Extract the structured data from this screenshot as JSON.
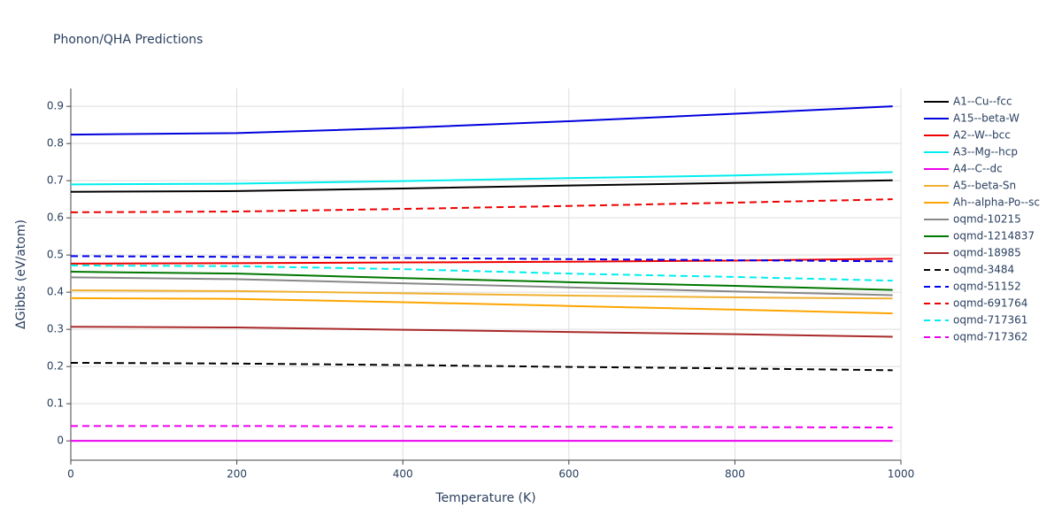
{
  "chart_data": {
    "type": "line",
    "title": "Phonon/QHA Predictions",
    "x_label": "Temperature (K)",
    "y_label": "ΔGibbs (eV/atom)",
    "x": [
      0,
      200,
      400,
      600,
      800,
      990
    ],
    "xlim": [
      0,
      1000
    ],
    "xticks": [
      0,
      200,
      400,
      600,
      800,
      1000
    ],
    "ylim": [
      -0.052,
      0.948
    ],
    "yticks": [
      0,
      0.1,
      0.2,
      0.3,
      0.4,
      0.5,
      0.6,
      0.7,
      0.8,
      0.9
    ],
    "grid": true,
    "legend": "right",
    "series": [
      {
        "name": "A1--Cu--fcc",
        "color": "#000000",
        "dash": "solid",
        "values": [
          0.67,
          0.672,
          0.679,
          0.687,
          0.694,
          0.701
        ]
      },
      {
        "name": "A15--beta-W",
        "color": "#0000dd",
        "dash": "solid",
        "values": [
          0.824,
          0.828,
          0.842,
          0.86,
          0.88,
          0.9
        ]
      },
      {
        "name": "A2--W--bcc",
        "color": "#ee0000",
        "dash": "solid",
        "values": [
          0.477,
          0.478,
          0.48,
          0.482,
          0.485,
          0.49
        ]
      },
      {
        "name": "A3--Mg--hcp",
        "color": "#00eeee",
        "dash": "solid",
        "values": [
          0.69,
          0.692,
          0.699,
          0.707,
          0.714,
          0.723
        ]
      },
      {
        "name": "A4--C--dc",
        "color": "#ee00ee",
        "dash": "solid",
        "values": [
          0,
          0,
          0,
          0,
          0,
          0
        ]
      },
      {
        "name": "A5--beta-Sn",
        "color": "#f0b030",
        "dash": "solid",
        "values": [
          0.405,
          0.403,
          0.397,
          0.391,
          0.386,
          0.383
        ]
      },
      {
        "name": "Ah--alpha-Po--sc",
        "color": "#ffa500",
        "dash": "solid",
        "values": [
          0.384,
          0.382,
          0.373,
          0.363,
          0.353,
          0.343
        ]
      },
      {
        "name": "oqmd-10215",
        "color": "#888888",
        "dash": "solid",
        "values": [
          0.44,
          0.435,
          0.424,
          0.413,
          0.402,
          0.392
        ]
      },
      {
        "name": "oqmd-1214837",
        "color": "#007700",
        "dash": "solid",
        "values": [
          0.455,
          0.45,
          0.438,
          0.427,
          0.417,
          0.406
        ]
      },
      {
        "name": "oqmd-18985",
        "color": "#aa2a2a",
        "dash": "solid",
        "values": [
          0.307,
          0.305,
          0.299,
          0.293,
          0.287,
          0.28
        ]
      },
      {
        "name": "oqmd-3484",
        "color": "#000000",
        "dash": "dash",
        "values": [
          0.21,
          0.208,
          0.204,
          0.199,
          0.195,
          0.19
        ]
      },
      {
        "name": "oqmd-51152",
        "color": "#0000ee",
        "dash": "dash",
        "values": [
          0.497,
          0.495,
          0.492,
          0.489,
          0.486,
          0.483
        ]
      },
      {
        "name": "oqmd-691764",
        "color": "#ee0000",
        "dash": "dash",
        "values": [
          0.615,
          0.617,
          0.624,
          0.632,
          0.641,
          0.65
        ]
      },
      {
        "name": "oqmd-717361",
        "color": "#00eeee",
        "dash": "dash",
        "values": [
          0.472,
          0.47,
          0.462,
          0.45,
          0.441,
          0.431
        ]
      },
      {
        "name": "oqmd-717362",
        "color": "#ee00ee",
        "dash": "dash",
        "values": [
          0.04,
          0.04,
          0.039,
          0.038,
          0.037,
          0.036
        ]
      }
    ]
  }
}
